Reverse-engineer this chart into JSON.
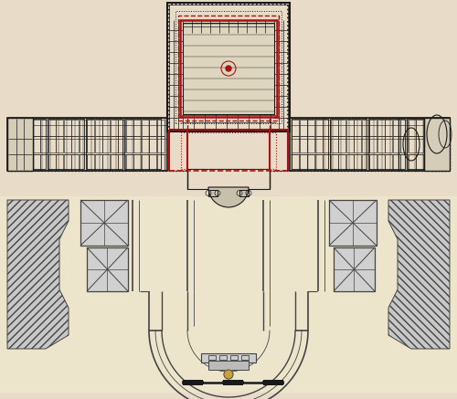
{
  "bg_color": "#e8dcc8",
  "black": "#1a1a1a",
  "red": "#aa1111",
  "dark_gray": "#444444",
  "mid_gray": "#888888",
  "light_gray": "#bbbbbb",
  "pale_gray": "#cccccc",
  "figsize": [
    5.0,
    4.37
  ],
  "dpi": 100
}
